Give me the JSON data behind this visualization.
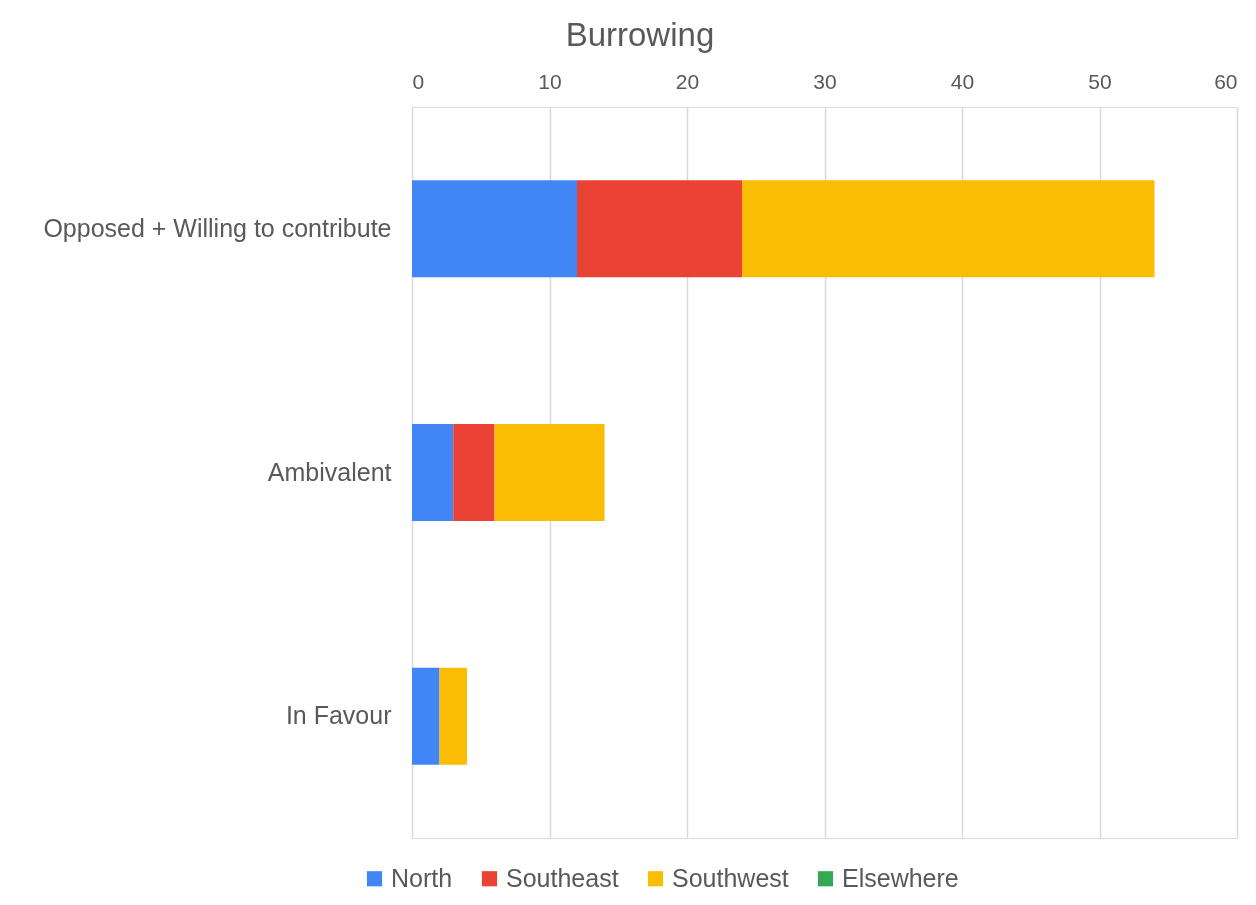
{
  "chart_data": {
    "type": "bar",
    "orientation": "horizontal",
    "stacked": true,
    "title": "Burrowing",
    "categories": [
      "Opposed + Willing to contribute",
      "Ambivalent",
      "In Favour"
    ],
    "series": [
      {
        "name": "North",
        "color": "#4285f4",
        "values": [
          12,
          3,
          2
        ]
      },
      {
        "name": "Southeast",
        "color": "#ea4335",
        "values": [
          12,
          3,
          0
        ]
      },
      {
        "name": "Southwest",
        "color": "#fbbc04",
        "values": [
          30,
          8,
          2
        ]
      },
      {
        "name": "Elsewhere",
        "color": "#34a853",
        "values": [
          0,
          0,
          0
        ]
      }
    ],
    "xlim": [
      0,
      60
    ],
    "xticks": [
      0,
      10,
      20,
      30,
      40,
      50,
      60
    ],
    "grid": "x",
    "legend": "bottom"
  }
}
